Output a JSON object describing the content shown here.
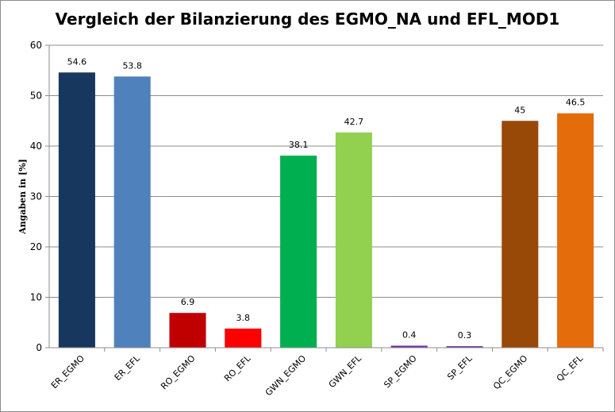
{
  "chart_data": {
    "type": "bar",
    "title": "Vergleich der Bilanzierung des EGMO_NA und EFL_MOD1",
    "xlabel": "",
    "ylabel": "Angaben in [%]",
    "ylim": [
      0,
      60
    ],
    "yticks": [
      0,
      10,
      20,
      30,
      40,
      50,
      60
    ],
    "grid": true,
    "legend": "none",
    "categories": [
      "ER_EGMO",
      "ER_EFL",
      "RO_EGMO",
      "RO_EFL",
      "GWN_EGMO",
      "GWN_EFL",
      "SP_EGMO",
      "SP_EFL",
      "QC_EGMO",
      "QC_EFL"
    ],
    "values": [
      54.6,
      53.8,
      6.9,
      3.8,
      38.1,
      42.7,
      0.4,
      0.3,
      45,
      46.5
    ],
    "value_labels": [
      "54.6",
      "53.8",
      "6.9",
      "3.8",
      "38.1",
      "42.7",
      "0.4",
      "0.3",
      "45",
      "46.5"
    ],
    "colors": [
      "#17375e",
      "#4f81bd",
      "#c00000",
      "#ff0000",
      "#00b050",
      "#92d050",
      "#7030a0",
      "#7030a0",
      "#984807",
      "#e46c0a"
    ]
  }
}
